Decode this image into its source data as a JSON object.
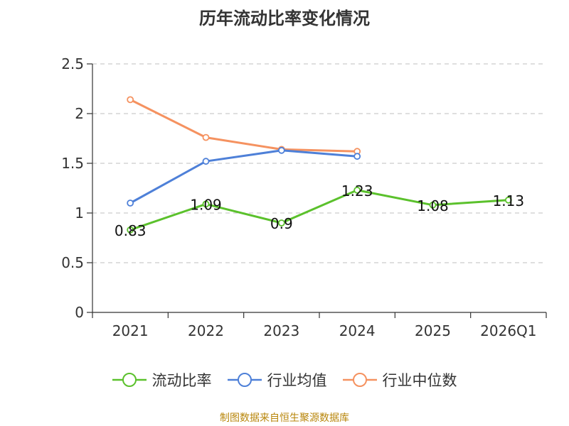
{
  "chart_data": {
    "type": "line",
    "title": "历年流动比率变化情况",
    "categories": [
      "2021",
      "2022",
      "2023",
      "2024",
      "2025",
      "2026Q1"
    ],
    "ylim": [
      0,
      2.5
    ],
    "yticks": [
      0,
      0.5,
      1,
      1.5,
      2,
      2.5
    ],
    "ytick_labels": [
      "0",
      "0.5",
      "1",
      "1.5",
      "2",
      "2.5"
    ],
    "grid": true,
    "legend_position": "bottom",
    "series": [
      {
        "name": "流动比率",
        "color": "#5bc12c",
        "values": [
          0.83,
          1.09,
          0.9,
          1.23,
          1.08,
          1.13
        ],
        "labels": [
          "0.83",
          "1.09",
          "0.9",
          "1.23",
          "1.08",
          "1.13"
        ]
      },
      {
        "name": "行业均值",
        "color": "#4e80d8",
        "values": [
          1.1,
          1.52,
          1.63,
          1.57,
          null,
          null
        ]
      },
      {
        "name": "行业中位数",
        "color": "#f59260",
        "values": [
          2.14,
          1.76,
          1.64,
          1.62,
          null,
          null
        ]
      }
    ]
  },
  "source_text": "制图数据来自恒生聚源数据库"
}
